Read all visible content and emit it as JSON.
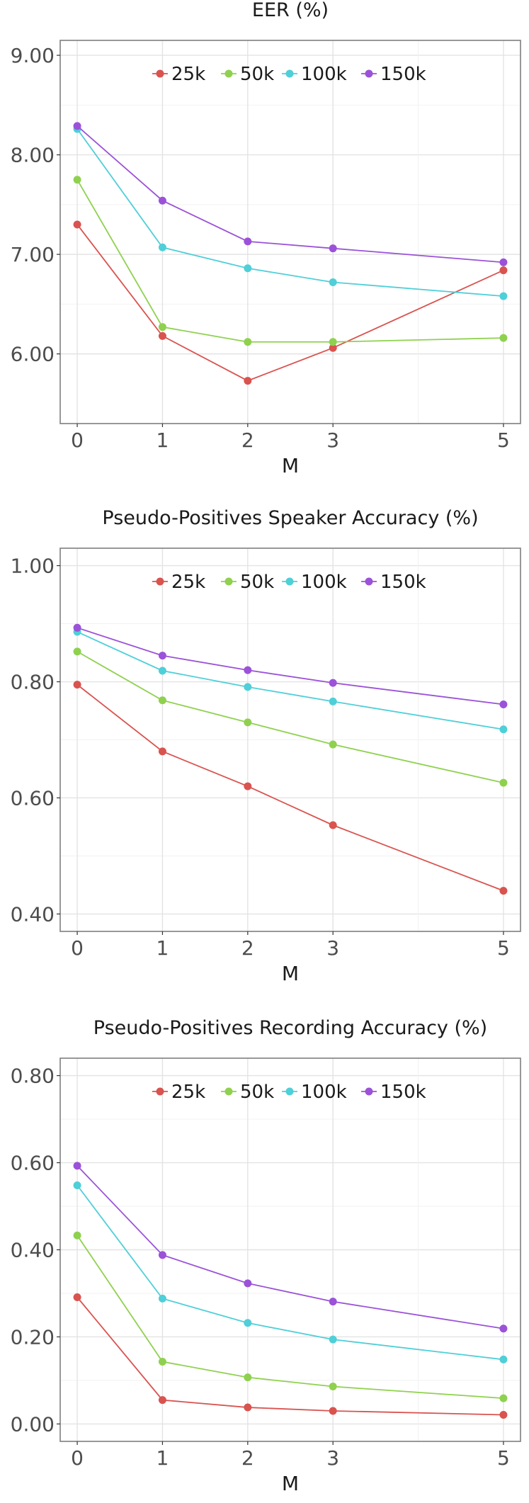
{
  "chart_data": [
    {
      "type": "line",
      "title": "EER (%)",
      "xlabel": "M",
      "ylabel": "",
      "x": [
        0,
        1,
        2,
        3,
        5
      ],
      "xticks": [
        "0",
        "1",
        "2",
        "3",
        "5"
      ],
      "ylim": [
        5.3,
        9.15
      ],
      "yticks": [
        6.0,
        7.0,
        8.0,
        9.0
      ],
      "ytick_labels": [
        "6.00",
        "7.00",
        "8.00",
        "9.00"
      ],
      "legend": "top-center",
      "grid": true,
      "series": [
        {
          "name": "25k",
          "color": "#d9534f",
          "values": [
            7.3,
            6.18,
            5.73,
            6.06,
            6.84
          ]
        },
        {
          "name": "50k",
          "color": "#8fd14f",
          "values": [
            7.75,
            6.27,
            6.12,
            6.12,
            6.16
          ]
        },
        {
          "name": "100k",
          "color": "#4fcfd8",
          "values": [
            8.26,
            7.07,
            6.86,
            6.72,
            6.58
          ]
        },
        {
          "name": "150k",
          "color": "#9b52d8",
          "values": [
            8.29,
            7.54,
            7.13,
            7.06,
            6.92
          ]
        }
      ]
    },
    {
      "type": "line",
      "title": "Pseudo-Positives Speaker Accuracy (%)",
      "xlabel": "M",
      "ylabel": "",
      "x": [
        0,
        1,
        2,
        3,
        5
      ],
      "xticks": [
        "0",
        "1",
        "2",
        "3",
        "5"
      ],
      "ylim": [
        0.37,
        1.03
      ],
      "yticks": [
        0.4,
        0.6,
        0.8,
        1.0
      ],
      "ytick_labels": [
        "0.40",
        "0.60",
        "0.80",
        "1.00"
      ],
      "legend": "top-center",
      "grid": true,
      "series": [
        {
          "name": "25k",
          "color": "#d9534f",
          "values": [
            0.795,
            0.68,
            0.62,
            0.553,
            0.44
          ]
        },
        {
          "name": "50k",
          "color": "#8fd14f",
          "values": [
            0.852,
            0.768,
            0.73,
            0.692,
            0.626
          ]
        },
        {
          "name": "100k",
          "color": "#4fcfd8",
          "values": [
            0.886,
            0.819,
            0.791,
            0.766,
            0.718
          ]
        },
        {
          "name": "150k",
          "color": "#9b52d8",
          "values": [
            0.893,
            0.845,
            0.82,
            0.798,
            0.761
          ]
        }
      ]
    },
    {
      "type": "line",
      "title": "Pseudo-Positives Recording Accuracy (%)",
      "xlabel": "M",
      "ylabel": "",
      "x": [
        0,
        1,
        2,
        3,
        5
      ],
      "xticks": [
        "0",
        "1",
        "2",
        "3",
        "5"
      ],
      "ylim": [
        -0.04,
        0.84
      ],
      "yticks": [
        0.0,
        0.2,
        0.4,
        0.6,
        0.8
      ],
      "ytick_labels": [
        "0.00",
        "0.20",
        "0.40",
        "0.60",
        "0.80"
      ],
      "legend": "top-center",
      "grid": true,
      "series": [
        {
          "name": "25k",
          "color": "#d9534f",
          "values": [
            0.291,
            0.055,
            0.038,
            0.03,
            0.021
          ]
        },
        {
          "name": "50k",
          "color": "#8fd14f",
          "values": [
            0.433,
            0.143,
            0.107,
            0.086,
            0.059
          ]
        },
        {
          "name": "100k",
          "color": "#4fcfd8",
          "values": [
            0.548,
            0.288,
            0.232,
            0.194,
            0.148
          ]
        },
        {
          "name": "150k",
          "color": "#9b52d8",
          "values": [
            0.593,
            0.388,
            0.323,
            0.281,
            0.219
          ]
        }
      ]
    }
  ]
}
